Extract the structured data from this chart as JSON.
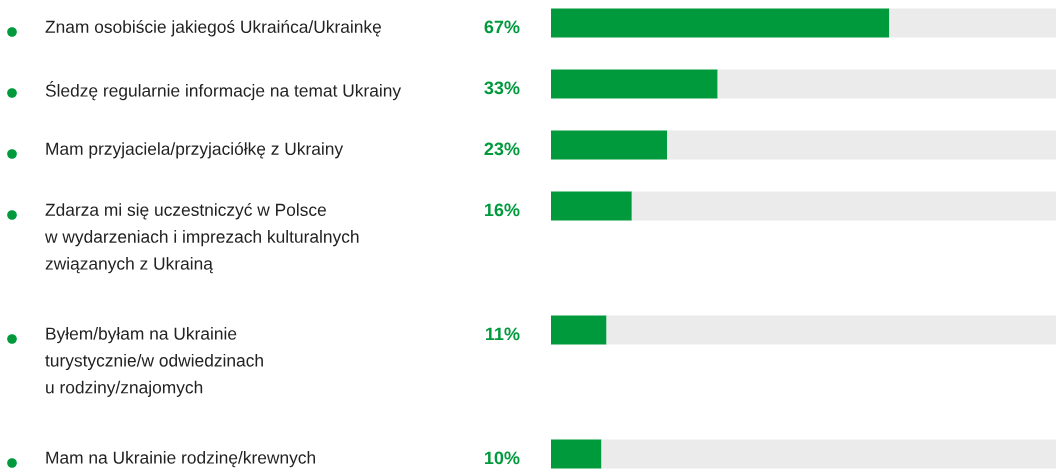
{
  "chart_data": {
    "type": "bar",
    "orientation": "horizontal",
    "stacked": true,
    "categories": [
      "Znam osobiście jakiegoś Ukraińca/Ukrainkę",
      "Śledzę regularnie informacje na temat Ukrainy",
      "Mam przyjaciela/przyjaciółkę z Ukrainy",
      "Zdarza mi się uczestniczyć w Polsce\nw wydarzeniach i imprezach kulturalnych\nzwiązanych z Ukrainą",
      "Byłem/byłam na Ukrainie\nturystycznie/w odwiedzinach\nu rodziny/znajomych",
      "Mam na Ukrainie rodzinę/krewnych"
    ],
    "series": [
      {
        "color": "#009a3d",
        "values": [
          67,
          33,
          23,
          16,
          11,
          10
        ],
        "value_labels": [
          "67%",
          "33%",
          "23%",
          "16%",
          "11%",
          "10%"
        ]
      },
      {
        "color": "#ebebeb",
        "values": [
          33,
          67,
          77,
          84,
          89,
          90
        ]
      }
    ],
    "xlim": [
      0,
      100
    ]
  }
}
